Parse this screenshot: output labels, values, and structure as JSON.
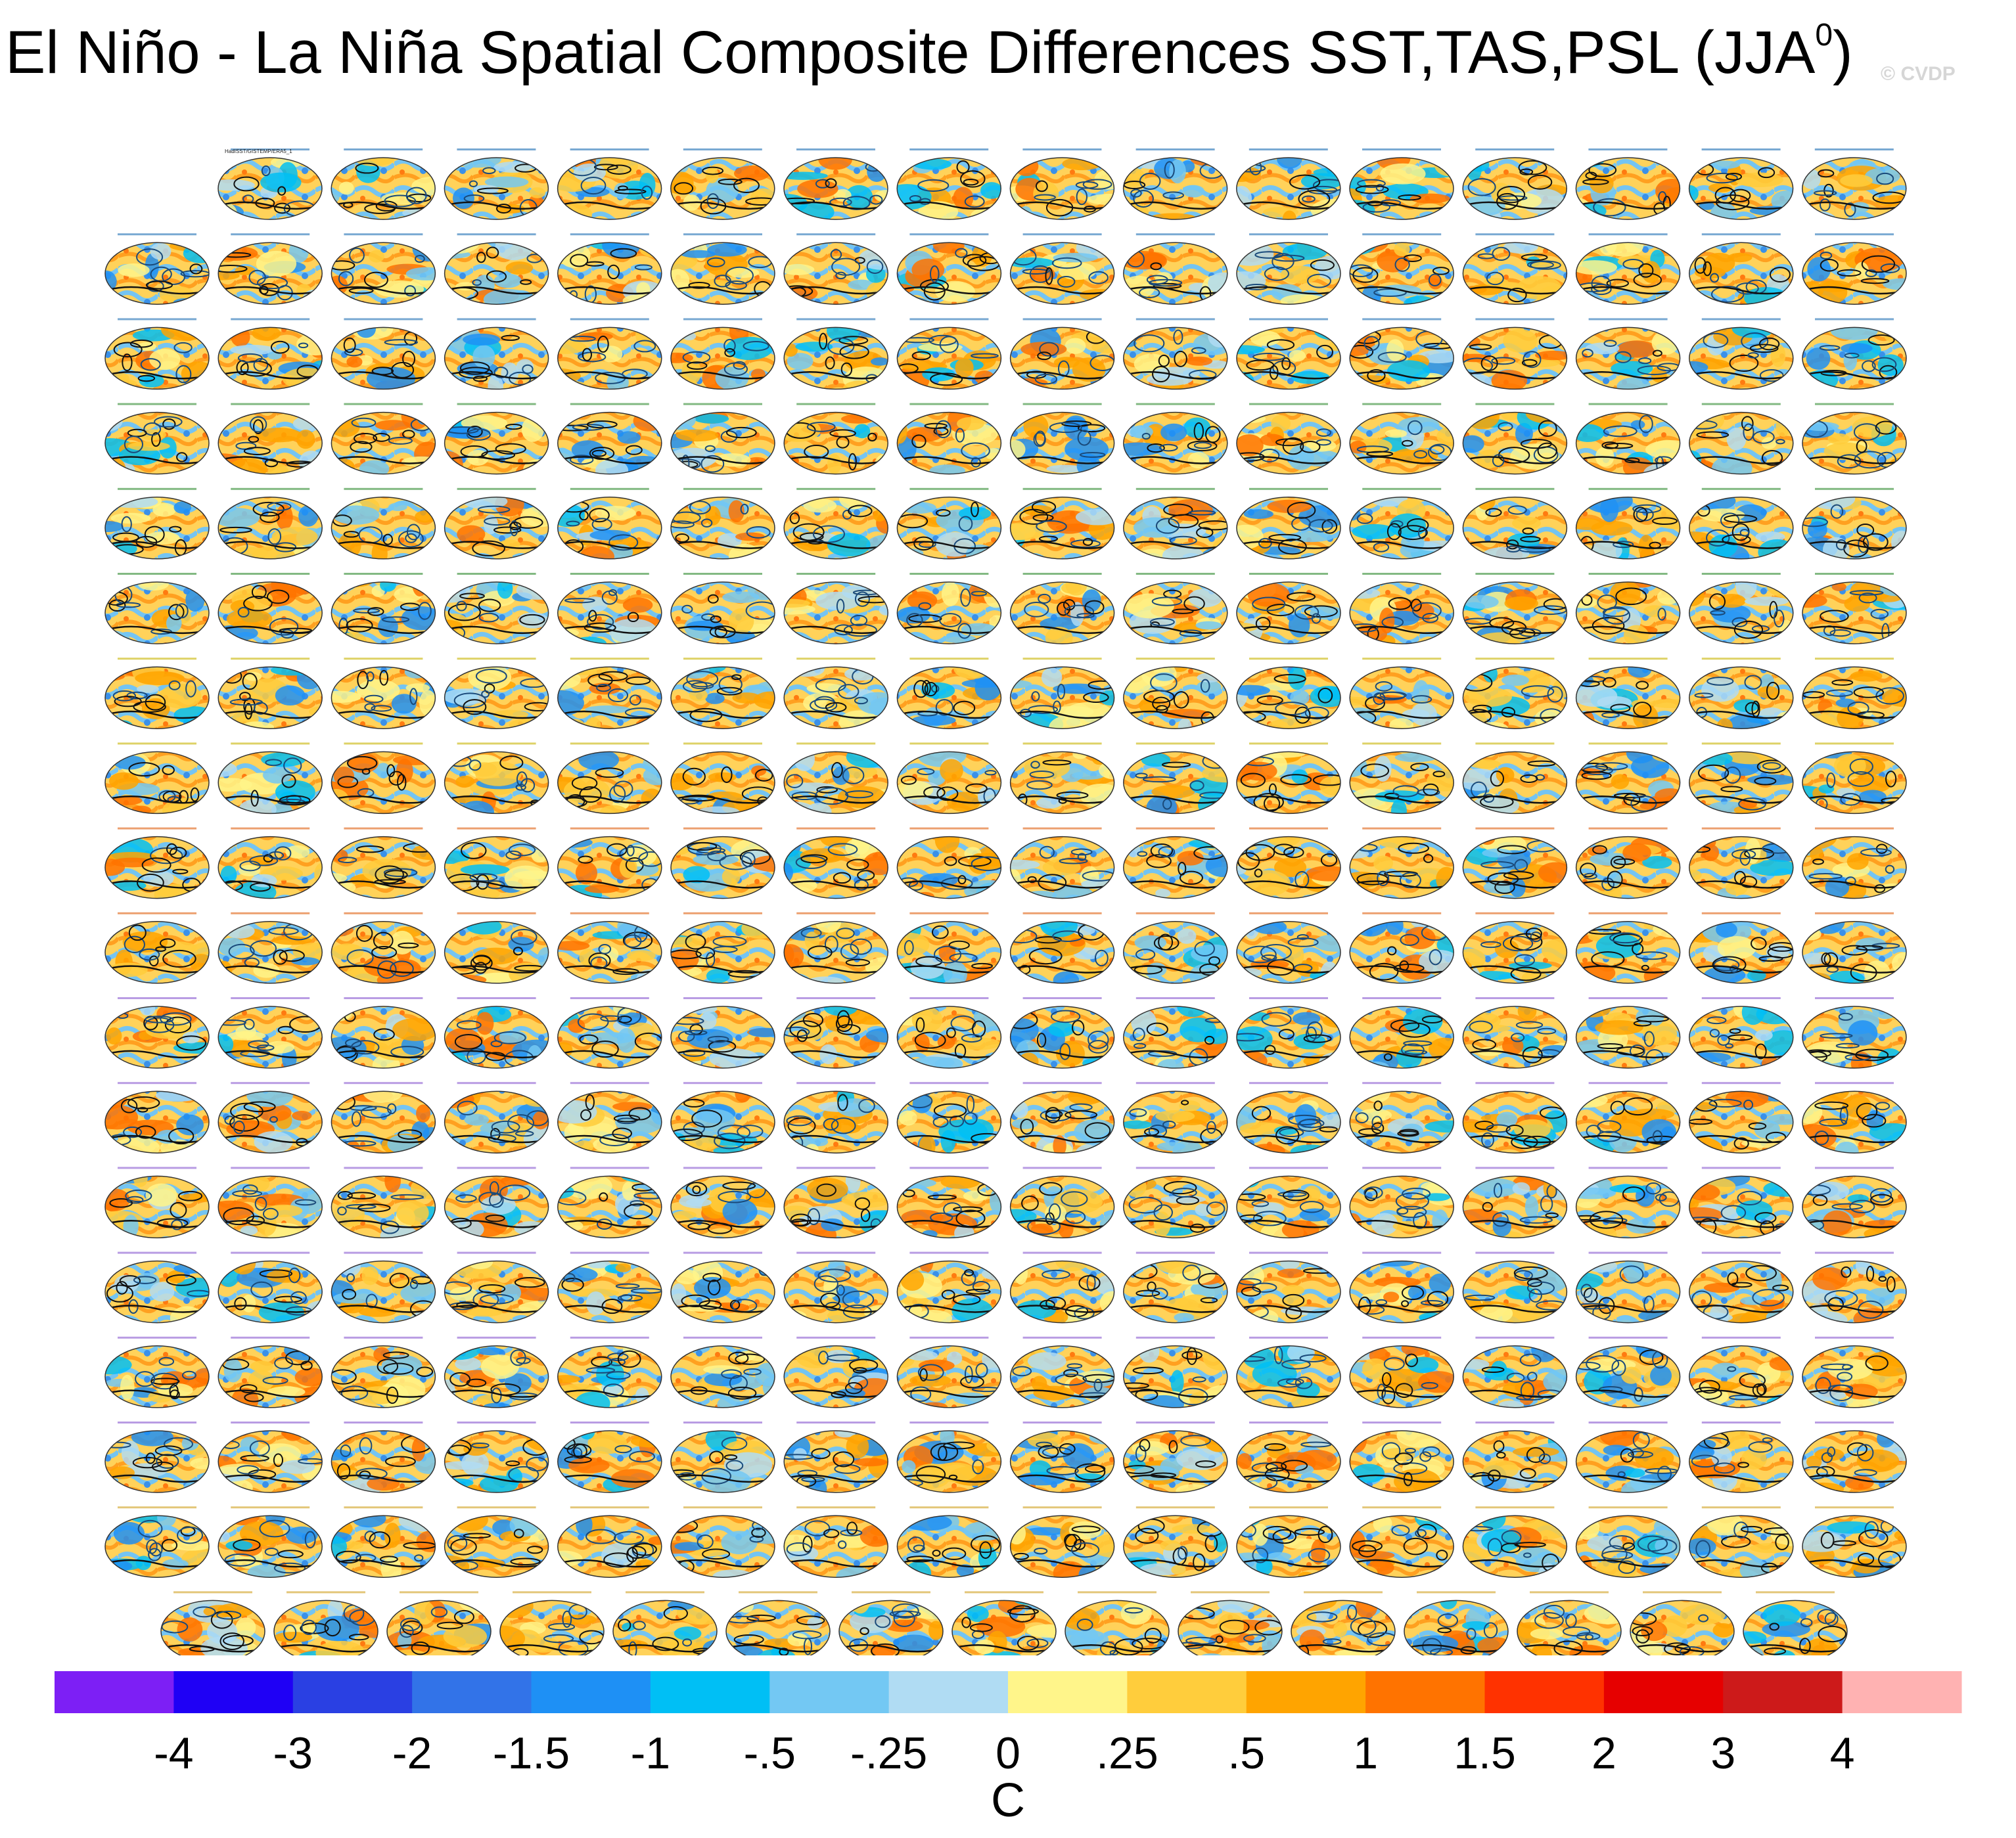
{
  "title": {
    "text": "El Niño - La Niña Spatial Composite Differences SST,TAS,PSL (JJA",
    "superscript": "0",
    "suffix": ")"
  },
  "watermark": "© CVDP",
  "panel_grid": {
    "rows": 18,
    "panels_per_row": [
      15,
      16,
      16,
      16,
      16,
      16,
      16,
      16,
      16,
      16,
      16,
      16,
      16,
      16,
      16,
      16,
      16,
      15
    ],
    "first_panel_label": "HadISST/GISTEMP/ERA5_1",
    "label_colors": [
      "#1f6fb4",
      "#1f6fb4",
      "#1f6fb4",
      "#2f8a2f",
      "#2f8a2f",
      "#2f8a2f",
      "#c8b400",
      "#c8b400",
      "#e06010",
      "#e06010",
      "#8a5ad0",
      "#8a5ad0",
      "#8a5ad0",
      "#8a5ad0",
      "#8a5ad0",
      "#8a5ad0",
      "#d0a020",
      "#d0a020"
    ]
  },
  "chart_data": {
    "type": "heatmap",
    "title": "El Niño - La Niña Spatial Composite Differences SST,TAS,PSL (JJA0)",
    "unit_label": "C",
    "description_of_fields": [
      "SST",
      "TAS",
      "PSL"
    ],
    "season": "JJA",
    "colorbar": {
      "tick_labels": [
        "-4",
        "-3",
        "-2",
        "-1.5",
        "-1",
        "-.5",
        "-.25",
        "0",
        ".25",
        ".5",
        "1",
        "1.5",
        "2",
        "3",
        "4"
      ],
      "bins": [
        {
          "color": "#7d1ff5"
        },
        {
          "color": "#1f00f5"
        },
        {
          "color": "#2a40e3"
        },
        {
          "color": "#3273e8"
        },
        {
          "color": "#1e90f5"
        },
        {
          "color": "#00bff5"
        },
        {
          "color": "#73c8f3"
        },
        {
          "color": "#b0dcf3"
        },
        {
          "color": "#fff58a"
        },
        {
          "color": "#ffcd3c"
        },
        {
          "color": "#ffa400"
        },
        {
          "color": "#ff7300"
        },
        {
          "color": "#ff3200"
        },
        {
          "color": "#e60000"
        },
        {
          "color": "#cd1a1a"
        },
        {
          "color": "#ffb2b2"
        }
      ]
    }
  }
}
